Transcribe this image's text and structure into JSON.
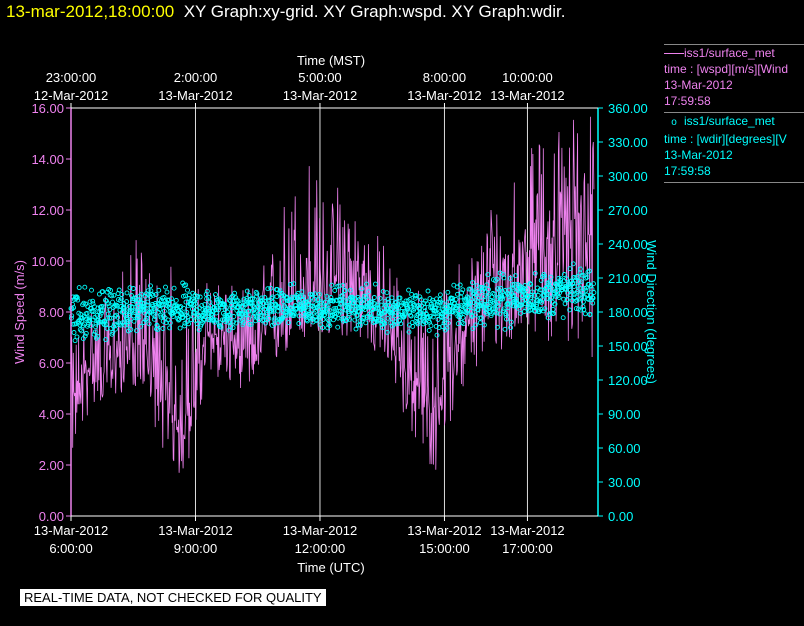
{
  "title": {
    "timestamp": "13-mar-2012,18:00:00",
    "graphs": "XY Graph:xy-grid.  XY Graph:wspd.  XY Graph:wdir."
  },
  "legend": {
    "wspd": {
      "name": "iss1/surface_met",
      "var": "time : [wspd][m/s][Wind",
      "date": "13-Mar-2012",
      "time": "17:59:58",
      "color": "#ee82ee"
    },
    "wdir": {
      "name": "iss1/surface_met",
      "var": "time : [wdir][degrees][V",
      "date": "13-Mar-2012",
      "time": "17:59:58",
      "color": "#00ffff"
    }
  },
  "footer": "REAL-TIME DATA, NOT CHECKED FOR QUALITY",
  "chart_data": {
    "type": "line",
    "x_top_label": "Time (MST)",
    "x_bottom_label": "Time (UTC)",
    "ylabel_left": "Wind Speed (m/s)",
    "ylabel_right": "Wind Direction (degrees)",
    "ylim_left": [
      0,
      16
    ],
    "ylim_right": [
      0,
      360
    ],
    "xlim_utc_hours": [
      6.0,
      18.7
    ],
    "grid": "vertical lines at bottom tick times",
    "left_ticks": [
      "0.00",
      "2.00",
      "4.00",
      "6.00",
      "8.00",
      "10.00",
      "12.00",
      "14.00",
      "16.00"
    ],
    "right_ticks": [
      "0.00",
      "30.00",
      "60.00",
      "90.00",
      "120.00",
      "150.00",
      "180.00",
      "210.00",
      "240.00",
      "270.00",
      "300.00",
      "330.00",
      "360.00"
    ],
    "bottom_ticks": [
      {
        "utc_hour": 6,
        "date": "13-Mar-2012",
        "time": "6:00:00"
      },
      {
        "utc_hour": 9,
        "date": "13-Mar-2012",
        "time": "9:00:00"
      },
      {
        "utc_hour": 12,
        "date": "13-Mar-2012",
        "time": "12:00:00"
      },
      {
        "utc_hour": 15,
        "date": "13-Mar-2012",
        "time": "15:00:00"
      },
      {
        "utc_hour": 17,
        "date": "13-Mar-2012",
        "time": "17:00:00"
      }
    ],
    "top_ticks": [
      {
        "utc_hour": 6,
        "time": "23:00:00",
        "date": "12-Mar-2012"
      },
      {
        "utc_hour": 9,
        "time": "2:00:00",
        "date": "13-Mar-2012"
      },
      {
        "utc_hour": 12,
        "time": "5:00:00",
        "date": "13-Mar-2012"
      },
      {
        "utc_hour": 15,
        "time": "8:00:00",
        "date": "13-Mar-2012"
      },
      {
        "utc_hour": 17,
        "time": "10:00:00",
        "date": "13-Mar-2012"
      }
    ],
    "series": [
      {
        "name": "iss1/surface_met wspd",
        "axis": "left",
        "style": "line",
        "color": "#ee82ee",
        "x_utc_hours": [
          6.0,
          6.3,
          6.6,
          6.9,
          7.2,
          7.5,
          7.8,
          8.1,
          8.4,
          8.7,
          9.0,
          9.3,
          9.6,
          9.9,
          10.2,
          10.5,
          10.8,
          11.1,
          11.4,
          11.7,
          12.0,
          12.3,
          12.6,
          12.9,
          13.2,
          13.5,
          13.8,
          14.1,
          14.4,
          14.7,
          15.0,
          15.3,
          15.6,
          15.9,
          16.2,
          16.5,
          16.8,
          17.1,
          17.4,
          17.7,
          18.0,
          18.3,
          18.6
        ],
        "mean": [
          4.2,
          5.5,
          6.2,
          6.0,
          6.5,
          6.8,
          6.5,
          5.0,
          4.0,
          3.5,
          5.5,
          7.0,
          7.2,
          6.8,
          6.5,
          6.8,
          7.5,
          8.0,
          8.5,
          9.0,
          8.8,
          9.0,
          9.2,
          9.0,
          8.5,
          8.0,
          7.0,
          5.5,
          5.0,
          4.0,
          5.5,
          6.8,
          7.5,
          8.5,
          9.0,
          9.5,
          10.0,
          10.5,
          10.8,
          11.0,
          11.5,
          12.0,
          12.5
        ],
        "min": [
          2.2,
          3.5,
          4.5,
          4.2,
          4.8,
          5.0,
          5.0,
          3.0,
          2.0,
          1.2,
          3.2,
          5.0,
          5.5,
          5.0,
          5.0,
          5.2,
          5.5,
          6.2,
          6.5,
          6.8,
          6.5,
          7.0,
          7.0,
          7.0,
          6.5,
          6.0,
          5.0,
          3.5,
          2.5,
          1.0,
          3.0,
          4.5,
          5.0,
          6.0,
          6.5,
          6.0,
          7.0,
          7.5,
          6.5,
          7.0,
          6.5,
          7.0,
          5.5
        ],
        "max": [
          7.0,
          8.0,
          9.0,
          8.5,
          9.5,
          11.0,
          10.5,
          9.5,
          10.0,
          9.0,
          9.0,
          9.5,
          9.5,
          9.0,
          9.0,
          9.5,
          10.5,
          12.5,
          13.5,
          15.0,
          13.0,
          12.5,
          14.5,
          12.0,
          11.5,
          11.0,
          10.0,
          9.5,
          9.0,
          8.5,
          9.0,
          10.0,
          10.5,
          11.5,
          13.0,
          14.0,
          14.0,
          14.5,
          15.0,
          15.5,
          16.0,
          16.0,
          16.0
        ]
      },
      {
        "name": "iss1/surface_met wdir",
        "axis": "right",
        "style": "markers",
        "color": "#00ffff",
        "x_utc_hours": [
          6.0,
          6.6,
          7.2,
          7.8,
          8.4,
          9.0,
          9.6,
          10.2,
          10.8,
          11.4,
          12.0,
          12.6,
          13.2,
          13.8,
          14.4,
          15.0,
          15.6,
          16.2,
          16.8,
          17.4,
          18.0,
          18.6
        ],
        "mean": [
          175,
          178,
          180,
          182,
          180,
          182,
          180,
          184,
          183,
          185,
          183,
          185,
          183,
          182,
          180,
          180,
          188,
          190,
          193,
          195,
          198,
          200
        ],
        "spread": [
          30,
          25,
          22,
          20,
          25,
          20,
          18,
          18,
          18,
          18,
          18,
          18,
          18,
          18,
          20,
          20,
          22,
          22,
          22,
          22,
          22,
          22
        ]
      }
    ]
  }
}
